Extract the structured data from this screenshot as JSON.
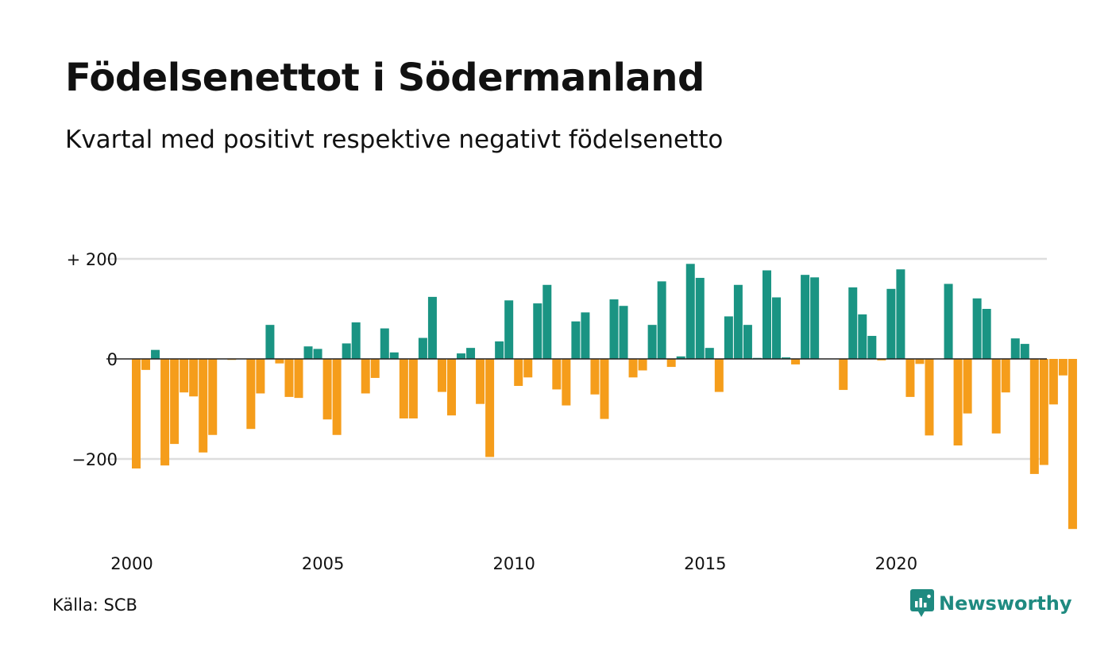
{
  "title": "Födelsenettot i Södermanland",
  "subtitle": "Kvartal med positivt respektive negativt födelsenetto",
  "source": "Källa: SCB",
  "brand": {
    "name": "Newsworthy",
    "icon": "newsworthy-logo-icon"
  },
  "colors": {
    "positive": "#1a9483",
    "negative": "#f59d1b",
    "grid": "#dedede",
    "axis": "#222222",
    "text": "#111111"
  },
  "chart_data": {
    "type": "bar",
    "title": "Födelsenettot i Södermanland",
    "subtitle": "Kvartal med positivt respektive negativt födelsenetto",
    "xlabel": "",
    "ylabel": "",
    "x_start": "2000-Q1",
    "frequency": "quarterly",
    "ylim": [
      -350,
      200
    ],
    "y_ticks": [
      {
        "value": 200,
        "label": "+ 200"
      },
      {
        "value": 0,
        "label": "0"
      },
      {
        "value": -200,
        "label": "−200"
      }
    ],
    "x_ticks": [
      {
        "year": 2000,
        "label": "2000"
      },
      {
        "year": 2005,
        "label": "2005"
      },
      {
        "year": 2010,
        "label": "2010"
      },
      {
        "year": 2015,
        "label": "2015"
      },
      {
        "year": 2020,
        "label": "2020"
      }
    ],
    "grid": true,
    "legend": "none",
    "values": [
      -219,
      -22,
      18,
      -213,
      -170,
      -67,
      -75,
      -187,
      -152,
      0,
      -2,
      0,
      -140,
      -69,
      68,
      -9,
      -76,
      -78,
      25,
      20,
      -121,
      -152,
      31,
      73,
      -69,
      -38,
      61,
      13,
      -119,
      -119,
      42,
      124,
      -66,
      -113,
      11,
      22,
      -90,
      -196,
      35,
      117,
      -54,
      -37,
      111,
      148,
      -61,
      -93,
      75,
      93,
      -71,
      -120,
      119,
      106,
      -37,
      -23,
      68,
      155,
      -16,
      5,
      190,
      162,
      22,
      -66,
      85,
      148,
      68,
      2,
      177,
      123,
      3,
      -11,
      168,
      163,
      0,
      0,
      -62,
      143,
      89,
      46,
      -3,
      140,
      179,
      -76,
      -10,
      -153,
      0,
      150,
      -173,
      -109,
      121,
      100,
      -149,
      -67,
      41,
      30,
      -230,
      -212,
      -91,
      -33,
      -340
    ]
  }
}
